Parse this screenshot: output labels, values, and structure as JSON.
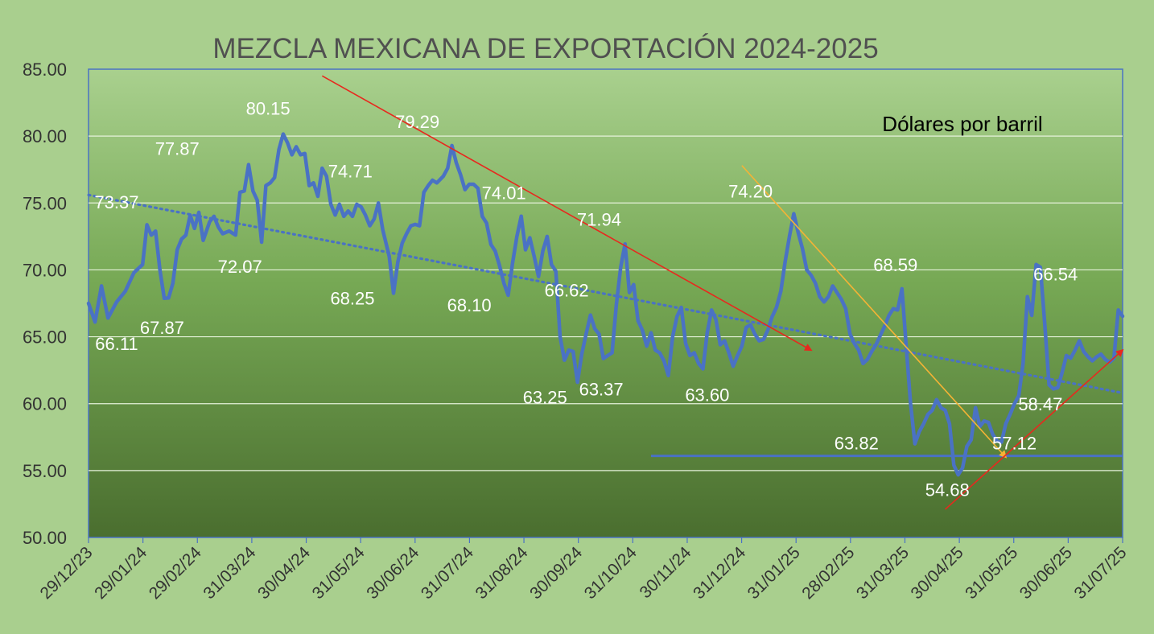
{
  "chart_data": {
    "type": "line",
    "title": "MEZCLA MEXICANA DE EXPORTACIÓN 2024-2025",
    "unit_label": "Dólares por barril",
    "xlabel": "",
    "ylabel": "",
    "ylim": [
      50,
      85
    ],
    "y_ticks": [
      "50.00",
      "55.00",
      "60.00",
      "65.00",
      "70.00",
      "75.00",
      "80.00",
      "85.00"
    ],
    "x_ticks": [
      "29/12/23",
      "29/01/24",
      "29/02/24",
      "31/03/24",
      "30/04/24",
      "31/05/24",
      "30/06/24",
      "31/07/24",
      "31/08/24",
      "30/09/24",
      "31/10/24",
      "30/11/24",
      "31/12/24",
      "31/01/25",
      "28/02/25",
      "31/03/25",
      "30/04/25",
      "31/05/25",
      "30/06/25",
      "31/07/25"
    ],
    "grid": true,
    "colors": {
      "series": "#4a72c4",
      "trend": "#4a72c4",
      "arrow_red": "#e8281e",
      "arrow_orange": "#f5b335",
      "label_highlight": "#e8281e",
      "plot_top": "#a9d08e",
      "plot_bottom": "#4a6e2f"
    },
    "series": [
      {
        "values": [
          [
            0,
            67.5
          ],
          [
            3,
            66.1
          ],
          [
            6,
            68.8
          ],
          [
            9,
            66.4
          ],
          [
            13,
            67.6
          ],
          [
            17,
            68.4
          ],
          [
            21,
            69.8
          ],
          [
            25,
            70.4
          ],
          [
            27,
            73.37
          ],
          [
            29,
            72.6
          ],
          [
            31,
            72.9
          ],
          [
            33,
            70.0
          ],
          [
            35,
            67.87
          ],
          [
            37,
            67.9
          ],
          [
            39,
            69.0
          ],
          [
            41,
            71.5
          ],
          [
            43,
            72.3
          ],
          [
            45,
            72.6
          ],
          [
            47,
            74.1
          ],
          [
            49,
            73.1
          ],
          [
            51,
            74.3
          ],
          [
            53,
            72.2
          ],
          [
            56,
            73.6
          ],
          [
            58,
            74.0
          ],
          [
            60,
            73.2
          ],
          [
            62,
            72.7
          ],
          [
            65,
            72.9
          ],
          [
            68,
            72.6
          ],
          [
            70,
            75.8
          ],
          [
            72,
            75.9
          ],
          [
            74,
            77.87
          ],
          [
            76,
            75.9
          ],
          [
            78,
            75.2
          ],
          [
            80,
            72.07
          ],
          [
            82,
            76.3
          ],
          [
            84,
            76.5
          ],
          [
            86,
            76.9
          ],
          [
            88,
            79.0
          ],
          [
            90,
            80.15
          ],
          [
            92,
            79.5
          ],
          [
            94,
            78.6
          ],
          [
            96,
            79.2
          ],
          [
            98,
            78.6
          ],
          [
            100,
            78.7
          ],
          [
            102,
            76.3
          ],
          [
            104,
            76.5
          ],
          [
            106,
            75.5
          ],
          [
            108,
            77.6
          ],
          [
            110,
            77.0
          ],
          [
            112,
            74.9
          ],
          [
            114,
            74.1
          ],
          [
            116,
            74.9
          ],
          [
            118,
            74.0
          ],
          [
            120,
            74.4
          ],
          [
            122,
            74.0
          ],
          [
            124,
            74.9
          ],
          [
            126,
            74.71
          ],
          [
            128,
            74.1
          ],
          [
            130,
            73.3
          ],
          [
            132,
            73.8
          ],
          [
            134,
            75.0
          ],
          [
            136,
            73.0
          ],
          [
            139,
            71.0
          ],
          [
            141,
            68.25
          ],
          [
            143,
            70.6
          ],
          [
            145,
            72.0
          ],
          [
            147,
            72.7
          ],
          [
            149,
            73.3
          ],
          [
            151,
            73.4
          ],
          [
            153,
            73.3
          ],
          [
            155,
            75.8
          ],
          [
            157,
            76.3
          ],
          [
            159,
            76.7
          ],
          [
            161,
            76.5
          ],
          [
            164,
            77.0
          ],
          [
            166,
            77.6
          ],
          [
            168,
            79.29
          ],
          [
            170,
            78.0
          ],
          [
            172,
            77.1
          ],
          [
            174,
            76.0
          ],
          [
            176,
            76.4
          ],
          [
            178,
            76.4
          ],
          [
            180,
            76.1
          ],
          [
            182,
            74.0
          ],
          [
            184,
            73.5
          ],
          [
            186,
            71.9
          ],
          [
            188,
            71.4
          ],
          [
            190,
            70.3
          ],
          [
            192,
            69.0
          ],
          [
            194,
            68.1
          ],
          [
            196,
            70.5
          ],
          [
            198,
            72.5
          ],
          [
            200,
            74.01
          ],
          [
            202,
            71.5
          ],
          [
            204,
            72.4
          ],
          [
            206,
            71.0
          ],
          [
            208,
            69.5
          ],
          [
            210,
            71.4
          ],
          [
            212,
            72.5
          ],
          [
            214,
            70.4
          ],
          [
            216,
            69.9
          ],
          [
            218,
            65.0
          ],
          [
            220,
            63.25
          ],
          [
            222,
            64.0
          ],
          [
            224,
            63.9
          ],
          [
            226,
            61.6
          ],
          [
            228,
            63.7
          ],
          [
            230,
            65.2
          ],
          [
            232,
            66.62
          ],
          [
            234,
            65.6
          ],
          [
            236,
            65.2
          ],
          [
            238,
            63.37
          ],
          [
            240,
            63.6
          ],
          [
            242,
            63.8
          ],
          [
            244,
            67.4
          ],
          [
            246,
            70.2
          ],
          [
            248,
            71.94
          ],
          [
            250,
            68.3
          ],
          [
            252,
            68.9
          ],
          [
            254,
            66.2
          ],
          [
            256,
            65.5
          ],
          [
            258,
            64.3
          ],
          [
            260,
            65.3
          ],
          [
            262,
            64.0
          ],
          [
            264,
            63.8
          ],
          [
            266,
            63.2
          ],
          [
            268,
            62.1
          ],
          [
            270,
            65.0
          ],
          [
            272,
            66.5
          ],
          [
            274,
            67.2
          ],
          [
            276,
            64.5
          ],
          [
            278,
            63.6
          ],
          [
            280,
            63.8
          ],
          [
            282,
            63.0
          ],
          [
            284,
            62.6
          ],
          [
            286,
            65.3
          ],
          [
            288,
            67.0
          ],
          [
            290,
            66.3
          ],
          [
            292,
            64.4
          ],
          [
            294,
            64.7
          ],
          [
            296,
            63.8
          ],
          [
            298,
            62.8
          ],
          [
            300,
            63.6
          ],
          [
            302,
            64.3
          ],
          [
            304,
            65.7
          ],
          [
            306,
            65.9
          ],
          [
            308,
            65.2
          ],
          [
            310,
            64.7
          ],
          [
            312,
            64.8
          ],
          [
            314,
            65.5
          ],
          [
            316,
            66.5
          ],
          [
            318,
            67.2
          ],
          [
            320,
            68.4
          ],
          [
            322,
            70.6
          ],
          [
            324,
            72.5
          ],
          [
            326,
            74.2
          ],
          [
            328,
            72.8
          ],
          [
            330,
            71.6
          ],
          [
            332,
            70.0
          ],
          [
            334,
            69.6
          ],
          [
            336,
            69.0
          ],
          [
            338,
            68.0
          ],
          [
            340,
            67.6
          ],
          [
            342,
            68.0
          ],
          [
            344,
            68.8
          ],
          [
            346,
            68.3
          ],
          [
            348,
            67.8
          ],
          [
            350,
            67.1
          ],
          [
            352,
            65.2
          ],
          [
            354,
            64.5
          ],
          [
            356,
            64.0
          ],
          [
            358,
            63.0
          ],
          [
            360,
            63.3
          ],
          [
            362,
            63.9
          ],
          [
            364,
            64.4
          ],
          [
            366,
            65.1
          ],
          [
            368,
            65.8
          ],
          [
            370,
            66.6
          ],
          [
            372,
            67.1
          ],
          [
            374,
            67.0
          ],
          [
            376,
            68.59
          ],
          [
            378,
            64.2
          ],
          [
            380,
            60.0
          ],
          [
            382,
            57.0
          ],
          [
            384,
            57.9
          ],
          [
            386,
            58.5
          ],
          [
            388,
            59.2
          ],
          [
            390,
            59.5
          ],
          [
            392,
            60.3
          ],
          [
            394,
            59.7
          ],
          [
            396,
            59.5
          ],
          [
            398,
            58.5
          ],
          [
            400,
            55.4
          ],
          [
            402,
            54.68
          ],
          [
            404,
            55.2
          ],
          [
            406,
            56.8
          ],
          [
            408,
            57.3
          ],
          [
            410,
            59.7
          ],
          [
            412,
            58.3
          ],
          [
            414,
            58.7
          ],
          [
            416,
            58.6
          ],
          [
            418,
            57.7
          ],
          [
            420,
            57.2
          ],
          [
            422,
            57.12
          ],
          [
            424,
            58.5
          ],
          [
            426,
            59.2
          ],
          [
            428,
            60.0
          ],
          [
            430,
            60.6
          ],
          [
            432,
            63.0
          ],
          [
            434,
            68.0
          ],
          [
            436,
            66.6
          ],
          [
            438,
            70.4
          ],
          [
            440,
            70.2
          ],
          [
            442,
            66.0
          ],
          [
            444,
            61.4
          ],
          [
            446,
            61.1
          ],
          [
            448,
            61.2
          ],
          [
            450,
            62.3
          ],
          [
            452,
            63.6
          ],
          [
            454,
            63.4
          ],
          [
            456,
            64.0
          ],
          [
            458,
            64.7
          ],
          [
            460,
            63.9
          ],
          [
            462,
            63.5
          ],
          [
            464,
            63.2
          ],
          [
            466,
            63.5
          ],
          [
            468,
            63.7
          ],
          [
            470,
            63.3
          ],
          [
            472,
            63.1
          ],
          [
            474,
            63.4
          ],
          [
            476,
            67.0
          ],
          [
            478,
            66.54
          ]
        ]
      }
    ],
    "trendline": {
      "style": "dotted",
      "from": 75.6,
      "to": 60.8
    },
    "support_line": {
      "value": 56.1,
      "from_index": 260,
      "to_index": 478
    },
    "arrows": [
      {
        "color": "red",
        "from": [
          108,
          84.5
        ],
        "to": [
          334,
          64.0
        ]
      },
      {
        "color": "orange",
        "from": [
          302,
          77.8
        ],
        "to": [
          424,
          56.0
        ]
      },
      {
        "color": "red",
        "from": [
          396,
          52.1
        ],
        "to": [
          478,
          64.0
        ]
      }
    ],
    "annotations": [
      {
        "text": "66.11",
        "x": 13,
        "y": 64.0,
        "color": "white",
        "size": 22
      },
      {
        "text": "73.37",
        "x": 13,
        "y": 74.6,
        "color": "white",
        "size": 22
      },
      {
        "text": "67.87",
        "x": 34,
        "y": 65.2,
        "color": "white",
        "size": 22
      },
      {
        "text": "77.87",
        "x": 41,
        "y": 78.6,
        "color": "white",
        "size": 22
      },
      {
        "text": "72.07",
        "x": 70,
        "y": 69.8,
        "color": "white",
        "size": 22
      },
      {
        "text": "80.15",
        "x": 83,
        "y": 81.6,
        "color": "white",
        "size": 20
      },
      {
        "text": "74.71",
        "x": 121,
        "y": 76.9,
        "color": "white",
        "size": 22
      },
      {
        "text": "68.25",
        "x": 122,
        "y": 67.4,
        "color": "white",
        "size": 22
      },
      {
        "text": "79.29",
        "x": 152,
        "y": 80.6,
        "color": "white",
        "size": 22
      },
      {
        "text": "68.10",
        "x": 176,
        "y": 66.9,
        "color": "white",
        "size": 22
      },
      {
        "text": "74.01",
        "x": 192,
        "y": 75.3,
        "color": "white",
        "size": 22
      },
      {
        "text": "63.25",
        "x": 211,
        "y": 60.0,
        "color": "white",
        "size": 22
      },
      {
        "text": "66.62",
        "x": 221,
        "y": 68.0,
        "color": "white",
        "size": 22
      },
      {
        "text": "71.94",
        "x": 236,
        "y": 73.3,
        "color": "white",
        "size": 22
      },
      {
        "text": "63.37",
        "x": 237,
        "y": 60.6,
        "color": "white",
        "size": 22
      },
      {
        "text": "63.60",
        "x": 286,
        "y": 60.2,
        "color": "white",
        "size": 22
      },
      {
        "text": "74.20",
        "x": 306,
        "y": 75.4,
        "color": "white",
        "size": 22
      },
      {
        "text": "68.59",
        "x": 373,
        "y": 69.9,
        "color": "white",
        "size": 22
      },
      {
        "text": "63.82",
        "x": 355,
        "y": 56.6,
        "color": "white",
        "size": 27
      },
      {
        "text": "54.68",
        "x": 397,
        "y": 53.1,
        "color": "white",
        "size": 22
      },
      {
        "text": "57.12",
        "x": 428,
        "y": 56.6,
        "color": "white",
        "size": 22
      },
      {
        "text": "58.47",
        "x": 440,
        "y": 59.5,
        "color": "white",
        "size": 22
      },
      {
        "text": "66.54",
        "x": 447,
        "y": 69.2,
        "color": "red",
        "size": 22
      }
    ]
  }
}
